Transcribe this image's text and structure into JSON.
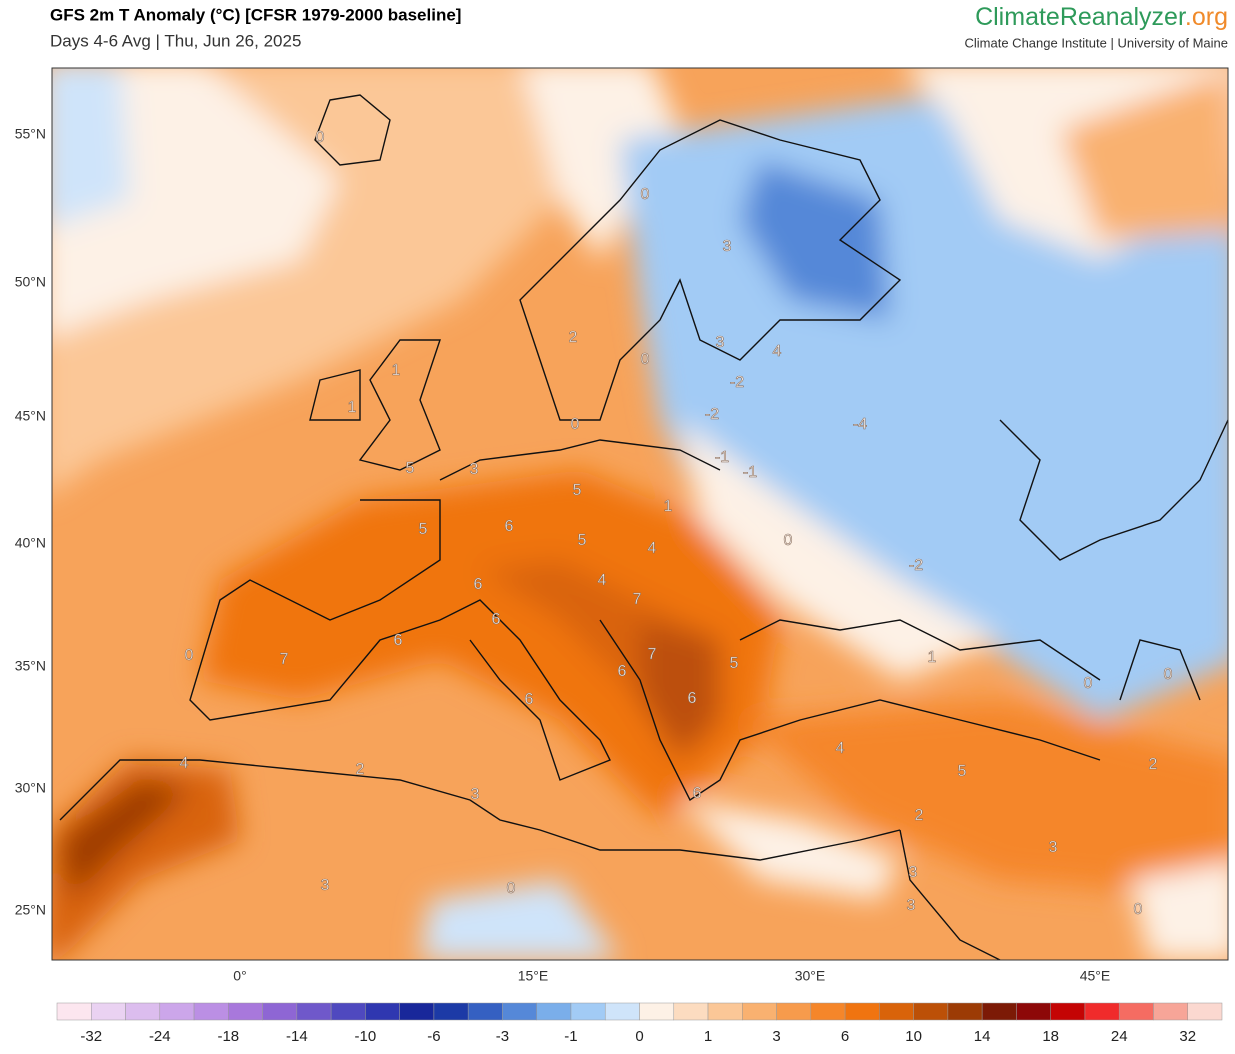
{
  "header": {
    "title": "GFS 2m T Anomaly (°C) [CFSR 1979-2000 baseline]",
    "subtitle": "Days 4-6 Avg | Thu, Jun 26, 2025",
    "brand": "ClimateReanalyzer",
    "brand_suffix": ".org",
    "affiliation": "Climate Change Institute | University of Maine"
  },
  "map": {
    "lat_labels": [
      "55°N",
      "50°N",
      "45°N",
      "40°N",
      "35°N",
      "30°N",
      "25°N"
    ],
    "lon_labels": [
      "0°",
      "15°E",
      "30°E",
      "45°E"
    ],
    "contour_labels": [
      0,
      0,
      3,
      2,
      0,
      3,
      4,
      1,
      1,
      -2,
      -2,
      -4,
      0,
      5,
      3,
      -1,
      -1,
      5,
      1,
      5,
      6,
      5,
      4,
      0,
      -2,
      6,
      4,
      7,
      6,
      6,
      0,
      7,
      7,
      5,
      6,
      1,
      0,
      0,
      6,
      6,
      4,
      4,
      2,
      5,
      2,
      3,
      6,
      2,
      3,
      3,
      3,
      0,
      3,
      0
    ]
  },
  "colorbar": {
    "ticks": [
      -32,
      -24,
      -18,
      -14,
      -10,
      -6,
      -3,
      -1,
      0,
      1,
      3,
      6,
      10,
      14,
      18,
      24,
      32
    ],
    "colors": [
      "#fce6ef",
      "#ead2f2",
      "#dcbdee",
      "#cca6ea",
      "#bb8fe4",
      "#a878dc",
      "#8e66d4",
      "#6f58ca",
      "#4f49bf",
      "#2f37b0",
      "#18279a",
      "#1c3aa6",
      "#3560c2",
      "#5588d8",
      "#7aaeea",
      "#a2cbf5",
      "#cfe4fa",
      "#fdf1e6",
      "#fcdcc0",
      "#fbc797",
      "#f9b170",
      "#f79b4c",
      "#f5862a",
      "#f07410",
      "#d9630a",
      "#bc5007",
      "#9c3b05",
      "#7c1a06",
      "#8d0808",
      "#c40404",
      "#f02b2b",
      "#f56c62",
      "#f7a598",
      "#fbd8d0"
    ]
  }
}
